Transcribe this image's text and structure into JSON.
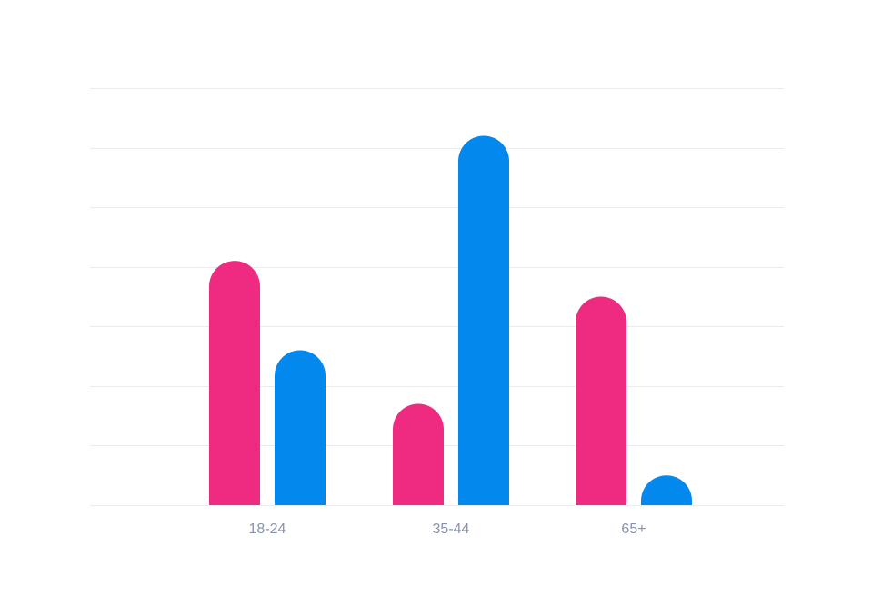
{
  "chart_data": {
    "type": "bar",
    "categories": [
      "18-24",
      "35-44",
      "65+"
    ],
    "series": [
      {
        "values": [
          41,
          17,
          35
        ],
        "color": "#ee2b80"
      },
      {
        "values": [
          26,
          62,
          5
        ],
        "color": "#0388ee"
      }
    ],
    "ylim": [
      0,
      70
    ],
    "grid": true,
    "bar_style": "rounded-top",
    "title": "",
    "xlabel": "",
    "ylabel": "",
    "legend": "none"
  }
}
